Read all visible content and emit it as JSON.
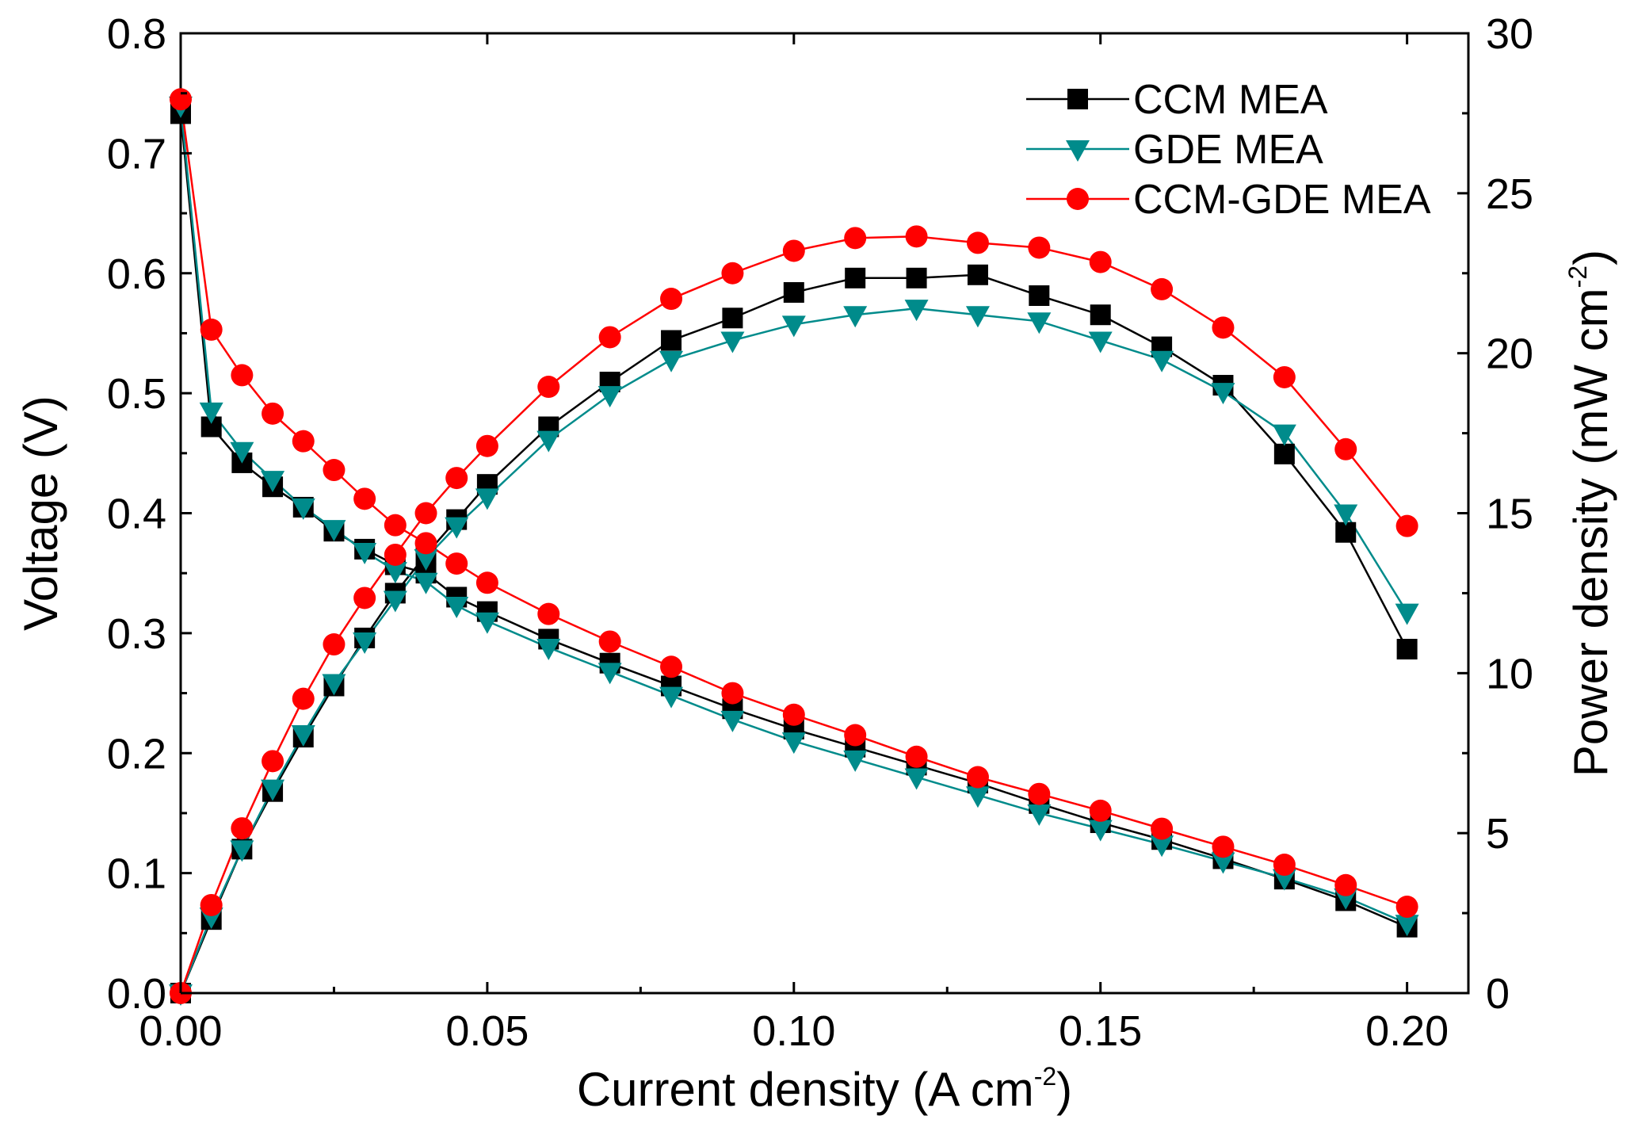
{
  "chart_data": {
    "type": "line",
    "x_axis": {
      "label_main": "Current density (A cm",
      "label_sup": "-2",
      "label_end": ")",
      "lim": [
        0,
        0.21
      ],
      "ticks": [
        0.0,
        0.05,
        0.1,
        0.15,
        0.2
      ],
      "tick_labels": [
        "0.00",
        "0.05",
        "0.10",
        "0.15",
        "0.20"
      ]
    },
    "y_left": {
      "label": "Voltage (V)",
      "lim": [
        0,
        0.8
      ],
      "ticks": [
        0.0,
        0.1,
        0.2,
        0.3,
        0.4,
        0.5,
        0.6,
        0.7,
        0.8
      ],
      "tick_labels": [
        "0.0",
        "0.1",
        "0.2",
        "0.3",
        "0.4",
        "0.5",
        "0.6",
        "0.7",
        "0.8"
      ]
    },
    "y_right": {
      "label_main": "Power density (mW cm",
      "label_sup": "-2",
      "label_end": ")",
      "lim": [
        0,
        30
      ],
      "ticks": [
        0,
        5,
        10,
        15,
        20,
        25,
        30
      ],
      "tick_labels": [
        "0",
        "5",
        "10",
        "15",
        "20",
        "25",
        "30"
      ]
    },
    "legend_position": "top-right",
    "series": [
      {
        "name": "CCM MEA",
        "color": "#000000",
        "marker": "square",
        "voltage": {
          "x": [
            0,
            0.005,
            0.01,
            0.015,
            0.02,
            0.025,
            0.03,
            0.035,
            0.04,
            0.045,
            0.05,
            0.06,
            0.07,
            0.08,
            0.09,
            0.1,
            0.11,
            0.12,
            0.13,
            0.14,
            0.15,
            0.16,
            0.17,
            0.18,
            0.19,
            0.2
          ],
          "y": [
            0.733,
            0.472,
            0.442,
            0.422,
            0.405,
            0.385,
            0.37,
            0.357,
            0.35,
            0.33,
            0.318,
            0.295,
            0.275,
            0.256,
            0.237,
            0.22,
            0.205,
            0.19,
            0.175,
            0.158,
            0.142,
            0.128,
            0.112,
            0.095,
            0.077,
            0.055
          ]
        },
        "power": {
          "x": [
            0,
            0.005,
            0.01,
            0.015,
            0.02,
            0.025,
            0.03,
            0.035,
            0.04,
            0.045,
            0.05,
            0.06,
            0.07,
            0.08,
            0.09,
            0.1,
            0.11,
            0.12,
            0.13,
            0.14,
            0.15,
            0.16,
            0.17,
            0.18,
            0.19,
            0.2
          ],
          "y": [
            0,
            2.3,
            4.5,
            6.3,
            8.0,
            9.6,
            11.1,
            12.5,
            13.7,
            14.8,
            15.9,
            17.7,
            19.1,
            20.4,
            21.1,
            21.9,
            22.35,
            22.35,
            22.45,
            21.8,
            21.2,
            20.2,
            19.0,
            16.85,
            14.4,
            10.75
          ]
        }
      },
      {
        "name": "GDE MEA",
        "color": "#008b8b",
        "marker": "triangle-down",
        "voltage": {
          "x": [
            0,
            0.005,
            0.01,
            0.015,
            0.02,
            0.025,
            0.03,
            0.035,
            0.04,
            0.045,
            0.05,
            0.06,
            0.07,
            0.08,
            0.09,
            0.1,
            0.11,
            0.12,
            0.13,
            0.14,
            0.15,
            0.16,
            0.17,
            0.18,
            0.19,
            0.2
          ],
          "y": [
            0.74,
            0.485,
            0.452,
            0.428,
            0.405,
            0.387,
            0.368,
            0.352,
            0.343,
            0.323,
            0.31,
            0.288,
            0.268,
            0.248,
            0.228,
            0.21,
            0.195,
            0.18,
            0.165,
            0.15,
            0.137,
            0.124,
            0.11,
            0.096,
            0.08,
            0.058
          ]
        },
        "power": {
          "x": [
            0,
            0.005,
            0.01,
            0.015,
            0.02,
            0.025,
            0.03,
            0.035,
            0.04,
            0.045,
            0.05,
            0.06,
            0.07,
            0.08,
            0.09,
            0.1,
            0.11,
            0.12,
            0.13,
            0.14,
            0.15,
            0.16,
            0.17,
            0.18,
            0.19,
            0.2
          ],
          "y": [
            0,
            2.4,
            4.5,
            6.4,
            8.1,
            9.7,
            11.0,
            12.3,
            13.6,
            14.6,
            15.5,
            17.3,
            18.7,
            19.8,
            20.4,
            20.9,
            21.2,
            21.4,
            21.2,
            21.0,
            20.4,
            19.8,
            18.8,
            17.5,
            15.0,
            11.9
          ]
        }
      },
      {
        "name": "CCM-GDE MEA",
        "color": "#ff0000",
        "marker": "circle",
        "voltage": {
          "x": [
            0,
            0.005,
            0.01,
            0.015,
            0.02,
            0.025,
            0.03,
            0.035,
            0.04,
            0.045,
            0.05,
            0.06,
            0.07,
            0.08,
            0.09,
            0.1,
            0.11,
            0.12,
            0.13,
            0.14,
            0.15,
            0.16,
            0.17,
            0.18,
            0.19,
            0.2
          ],
          "y": [
            0.745,
            0.553,
            0.515,
            0.483,
            0.46,
            0.436,
            0.412,
            0.39,
            0.375,
            0.358,
            0.342,
            0.316,
            0.293,
            0.272,
            0.25,
            0.232,
            0.215,
            0.197,
            0.18,
            0.166,
            0.152,
            0.137,
            0.122,
            0.107,
            0.09,
            0.072
          ]
        },
        "power": {
          "x": [
            0,
            0.005,
            0.01,
            0.015,
            0.02,
            0.025,
            0.03,
            0.035,
            0.04,
            0.045,
            0.05,
            0.06,
            0.07,
            0.08,
            0.09,
            0.1,
            0.11,
            0.12,
            0.13,
            0.14,
            0.15,
            0.16,
            0.17,
            0.18,
            0.19,
            0.2
          ],
          "y": [
            0,
            2.75,
            5.15,
            7.25,
            9.2,
            10.9,
            12.35,
            13.7,
            15.0,
            16.1,
            17.1,
            18.95,
            20.5,
            21.7,
            22.5,
            23.2,
            23.6,
            23.65,
            23.45,
            23.3,
            22.85,
            22.0,
            20.8,
            19.25,
            17.0,
            14.6
          ]
        }
      }
    ]
  }
}
